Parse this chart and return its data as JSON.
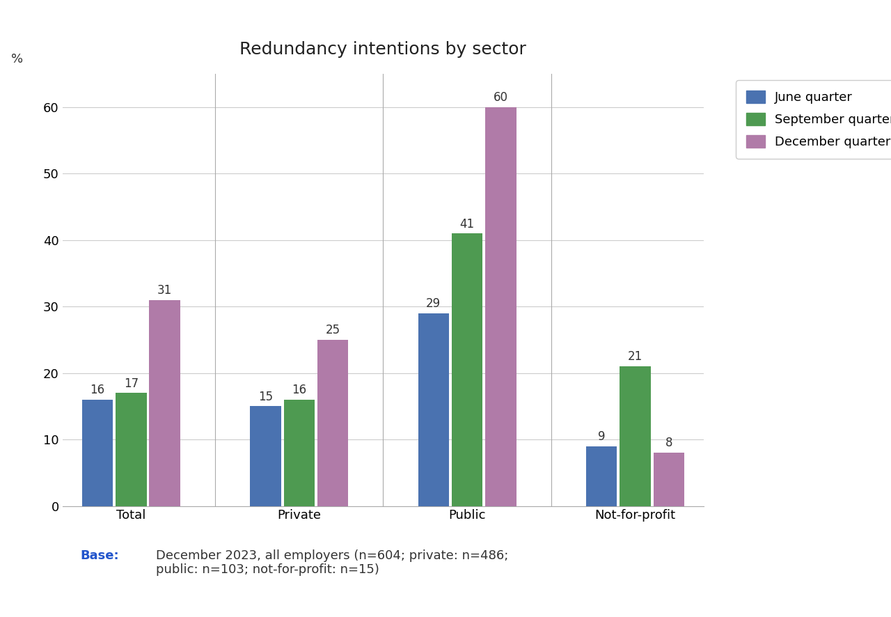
{
  "title": "Redundancy intentions by sector",
  "categories": [
    "Total",
    "Private",
    "Public",
    "Not-for-profit"
  ],
  "series": [
    {
      "name": "June quarter",
      "values": [
        16,
        15,
        29,
        9
      ],
      "color": "#4A72B0"
    },
    {
      "name": "September quarter",
      "values": [
        17,
        16,
        41,
        21
      ],
      "color": "#4E9A51"
    },
    {
      "name": "December quarter",
      "values": [
        31,
        25,
        60,
        8
      ],
      "color": "#B07BA8"
    }
  ],
  "ylabel": "%",
  "ylim": [
    0,
    65
  ],
  "yticks": [
    0,
    10,
    20,
    30,
    40,
    50,
    60
  ],
  "bar_width": 0.22,
  "group_positions": [
    0,
    1.1,
    2.2,
    3.3
  ],
  "background_color": "#ffffff",
  "grid_color": "#cccccc",
  "title_fontsize": 18,
  "axis_fontsize": 13,
  "tick_fontsize": 13,
  "legend_fontsize": 13,
  "bar_label_fontsize": 12,
  "base_text": "December 2023, all employers (n=604; private: n=486;\npublic: n=103; not-for-profit: n=15)",
  "base_label": "Base:",
  "base_color": "#2255CC",
  "separator_color": "#aaaaaa",
  "text_color": "#333333"
}
